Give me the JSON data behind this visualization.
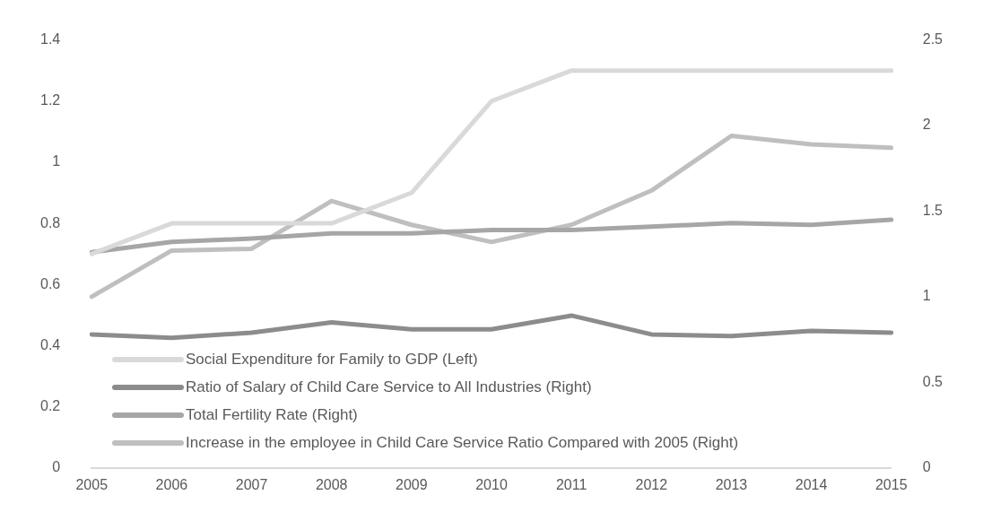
{
  "chart_data": {
    "type": "line",
    "categories": [
      "2005",
      "2006",
      "2007",
      "2008",
      "2009",
      "2010",
      "2011",
      "2012",
      "2013",
      "2014",
      "2015"
    ],
    "series": [
      {
        "name": "Social Expenditure for Family to GDP (Left)",
        "color": "#d9d9d9",
        "values": [
          0.7,
          0.8,
          0.8,
          0.8,
          0.9,
          1.2,
          1.3,
          1.3,
          1.3,
          1.3,
          1.3
        ]
      },
      {
        "name": "Ratio of Salary of Child Care Service to All Industries (Right)",
        "color": "#8c8c8c",
        "axis": "y2",
        "values": [
          0.78,
          0.76,
          0.79,
          0.85,
          0.81,
          0.81,
          0.89,
          0.78,
          0.77,
          0.8,
          0.79
        ]
      },
      {
        "name": "Total Fertility Rate (Right)",
        "color": "#a6a6a6",
        "axis": "y2",
        "values": [
          1.26,
          1.32,
          1.34,
          1.37,
          1.37,
          1.39,
          1.39,
          1.41,
          1.43,
          1.42,
          1.45
        ]
      },
      {
        "name": "Increase in the employee in Child Care Service Ratio Compared with 2005 (Right)",
        "color": "#bfbfbf",
        "axis": "y2",
        "values": [
          1.0,
          1.27,
          1.28,
          1.56,
          1.42,
          1.32,
          1.42,
          1.62,
          1.94,
          1.89,
          1.87
        ]
      }
    ],
    "ylim": [
      0,
      1.4
    ],
    "yticks": [
      0,
      0.2,
      0.4,
      0.6,
      0.8,
      1,
      1.2,
      1.4
    ],
    "y2lim": [
      0,
      2.5
    ],
    "y2ticks": [
      0,
      0.5,
      1,
      1.5,
      2,
      2.5
    ],
    "grid": false,
    "legend": "bottom left",
    "marker": "none",
    "line_style": "solid"
  }
}
